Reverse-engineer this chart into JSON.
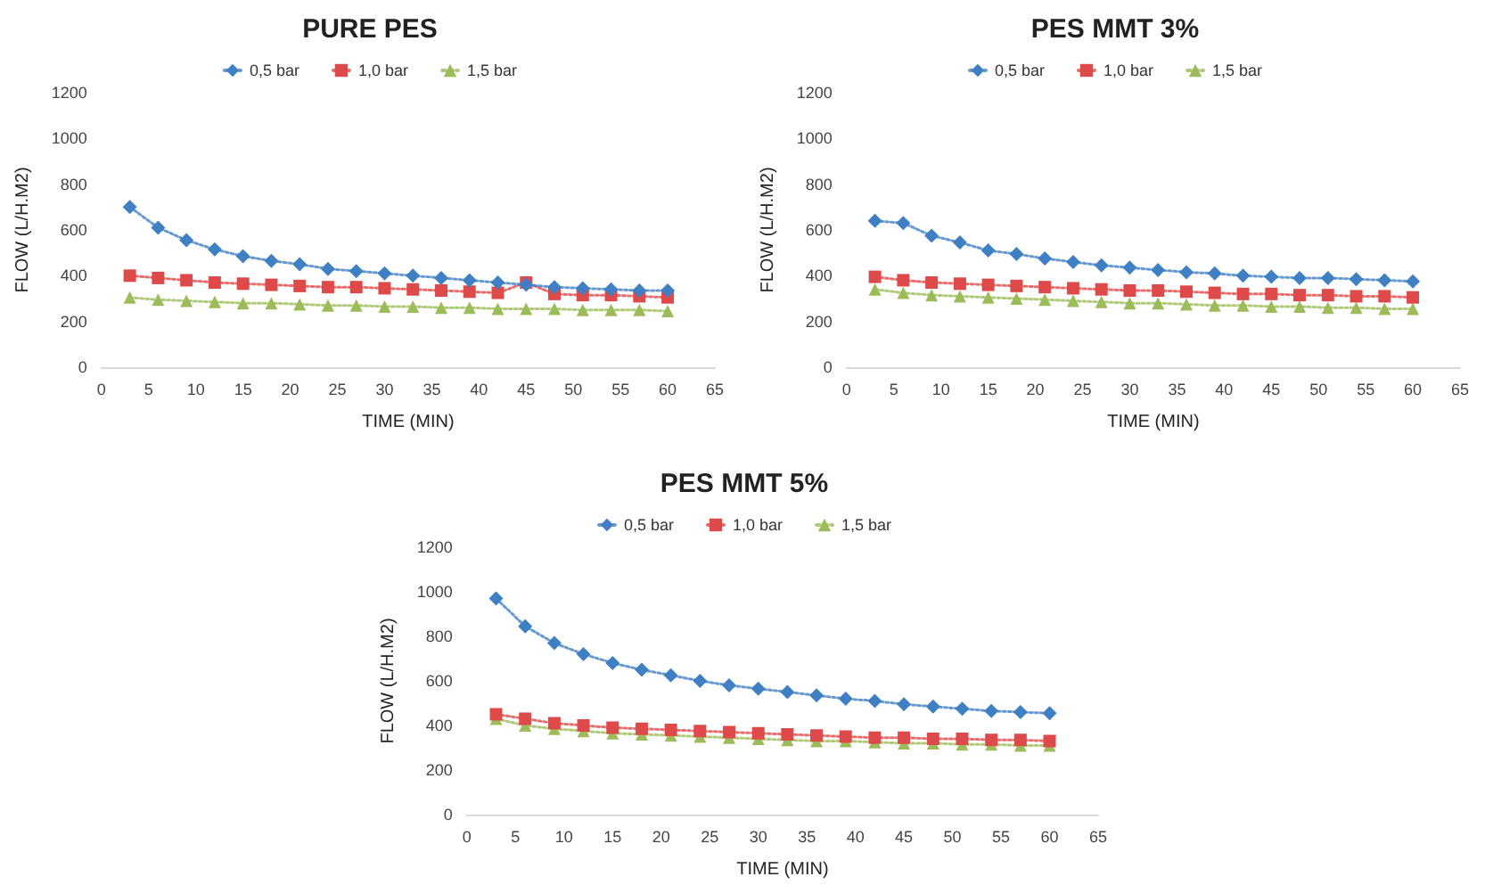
{
  "chart_data": [
    {
      "type": "line",
      "title": "PURE PES",
      "xlabel": "TIME (MIN)",
      "ylabel": "FLOW (L/H.M2)",
      "x": [
        3,
        6,
        9,
        12,
        15,
        18,
        21,
        24,
        27,
        30,
        33,
        36,
        39,
        42,
        45,
        48,
        51,
        54,
        57,
        60
      ],
      "xlim": [
        0,
        65
      ],
      "xticks": [
        0,
        5,
        10,
        15,
        20,
        25,
        30,
        35,
        40,
        45,
        50,
        55,
        60,
        65
      ],
      "ylim": [
        0,
        1200
      ],
      "yticks": [
        0,
        200,
        400,
        600,
        800,
        1000,
        1200
      ],
      "grid": false,
      "legend": "top",
      "line_style": "dotted",
      "series": [
        {
          "name": "0,5 bar",
          "color": "#3f7fc4",
          "marker": "diamond",
          "values": [
            700,
            610,
            555,
            515,
            485,
            465,
            450,
            430,
            420,
            410,
            400,
            390,
            380,
            370,
            360,
            350,
            345,
            340,
            335,
            335
          ]
        },
        {
          "name": "1,0 bar",
          "color": "#de4a4a",
          "marker": "square",
          "values": [
            400,
            390,
            380,
            370,
            365,
            360,
            355,
            350,
            350,
            345,
            340,
            335,
            330,
            325,
            370,
            320,
            315,
            315,
            310,
            305
          ]
        },
        {
          "name": "1,5 bar",
          "color": "#9cbc5a",
          "marker": "triangle",
          "values": [
            305,
            295,
            290,
            285,
            280,
            280,
            275,
            270,
            270,
            265,
            265,
            260,
            260,
            255,
            255,
            255,
            250,
            250,
            250,
            245
          ]
        }
      ]
    },
    {
      "type": "line",
      "title": "PES MMT 3%",
      "xlabel": "TIME (MIN)",
      "ylabel": "FLOW (L/H.M2)",
      "x": [
        3,
        6,
        9,
        12,
        15,
        18,
        21,
        24,
        27,
        30,
        33,
        36,
        39,
        42,
        45,
        48,
        51,
        54,
        57,
        60
      ],
      "xlim": [
        0,
        65
      ],
      "xticks": [
        0,
        5,
        10,
        15,
        20,
        25,
        30,
        35,
        40,
        45,
        50,
        55,
        60,
        65
      ],
      "ylim": [
        0,
        1200
      ],
      "yticks": [
        0,
        200,
        400,
        600,
        800,
        1000,
        1200
      ],
      "grid": false,
      "legend": "top",
      "line_style": "dotted",
      "series": [
        {
          "name": "0,5 bar",
          "color": "#3f7fc4",
          "marker": "diamond",
          "values": [
            640,
            630,
            575,
            545,
            510,
            495,
            475,
            460,
            445,
            435,
            425,
            415,
            410,
            400,
            395,
            390,
            390,
            385,
            380,
            375
          ]
        },
        {
          "name": "1,0 bar",
          "color": "#de4a4a",
          "marker": "square",
          "values": [
            395,
            380,
            370,
            365,
            360,
            355,
            350,
            345,
            340,
            335,
            335,
            330,
            325,
            320,
            320,
            315,
            315,
            310,
            310,
            305
          ]
        },
        {
          "name": "1,5 bar",
          "color": "#9cbc5a",
          "marker": "triangle",
          "values": [
            340,
            325,
            315,
            310,
            305,
            300,
            295,
            290,
            285,
            280,
            280,
            275,
            270,
            270,
            265,
            265,
            260,
            260,
            255,
            255
          ]
        }
      ]
    },
    {
      "type": "line",
      "title": "PES MMT 5%",
      "xlabel": "TIME (MIN)",
      "ylabel": "FLOW (L/H.M2)",
      "x": [
        3,
        6,
        9,
        12,
        15,
        18,
        21,
        24,
        27,
        30,
        33,
        36,
        39,
        42,
        45,
        48,
        51,
        54,
        57,
        60
      ],
      "xlim": [
        0,
        65
      ],
      "xticks": [
        0,
        5,
        10,
        15,
        20,
        25,
        30,
        35,
        40,
        45,
        50,
        55,
        60,
        65
      ],
      "ylim": [
        0,
        1200
      ],
      "yticks": [
        0,
        200,
        400,
        600,
        800,
        1000,
        1200
      ],
      "grid": false,
      "legend": "top",
      "line_style": "dotted",
      "series": [
        {
          "name": "0,5 bar",
          "color": "#3f7fc4",
          "marker": "diamond",
          "values": [
            970,
            845,
            770,
            720,
            680,
            650,
            625,
            600,
            580,
            565,
            550,
            535,
            520,
            510,
            495,
            485,
            475,
            465,
            460,
            455
          ]
        },
        {
          "name": "1,0 bar",
          "color": "#de4a4a",
          "marker": "square",
          "values": [
            450,
            430,
            410,
            400,
            390,
            385,
            380,
            375,
            370,
            365,
            360,
            355,
            350,
            345,
            345,
            340,
            340,
            335,
            335,
            330
          ]
        },
        {
          "name": "1,5 bar",
          "color": "#9cbc5a",
          "marker": "triangle",
          "values": [
            430,
            400,
            385,
            375,
            365,
            360,
            355,
            350,
            345,
            340,
            335,
            330,
            330,
            325,
            320,
            320,
            315,
            315,
            310,
            310
          ]
        }
      ]
    }
  ]
}
